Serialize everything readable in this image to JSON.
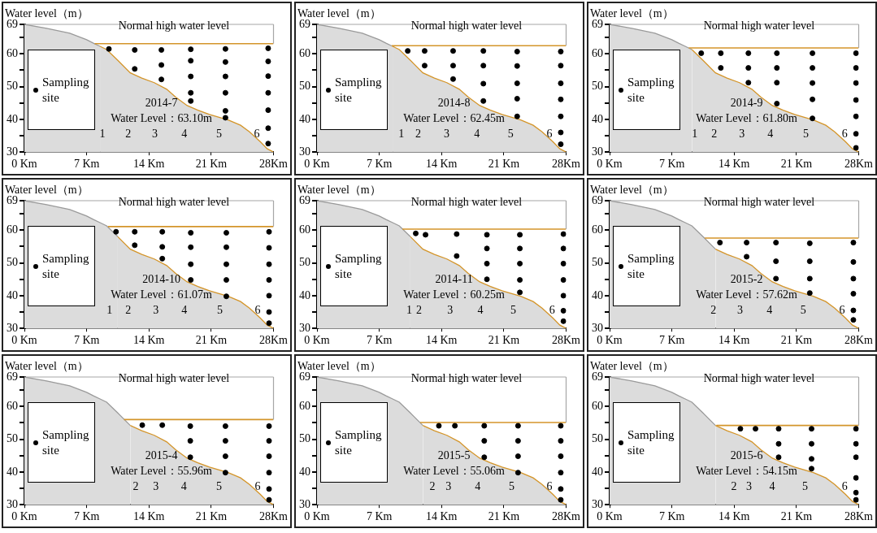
{
  "chart_data": [
    {
      "type": "area",
      "ylabel": "Water level（m）",
      "xlim": [
        0,
        28
      ],
      "ylim": [
        30,
        69
      ],
      "xticks": [
        {
          "value": 0,
          "label": "0 Km"
        },
        {
          "value": 7,
          "label": "7 Km"
        },
        {
          "value": 14,
          "label": "14 Km"
        },
        {
          "value": 21,
          "label": "21 Km"
        },
        {
          "value": 28,
          "label": "28Km"
        }
      ],
      "yticks": [
        30,
        {
          "value": 35,
          "label": null
        },
        40,
        {
          "value": 45,
          "label": null
        },
        50,
        {
          "value": 55,
          "label": null
        },
        60,
        {
          "value": 65,
          "label": null
        },
        69
      ],
      "legend": "left",
      "ref_lines": [
        {
          "axis": "y",
          "value": 69,
          "label": "Normal high water level",
          "color": "#a6a6a6"
        }
      ],
      "annotations": [
        "2014-7",
        "Water Level：63.10m",
        "1",
        "2",
        "3",
        "4",
        "5",
        "6"
      ],
      "series": [
        {
          "color": "#dcdcdc",
          "x": [
            0,
            2.5,
            5.1,
            7,
            7.8,
            8.5,
            9.25,
            10.5,
            11.9,
            13.2,
            14.6,
            16,
            17,
            18.3,
            19.5,
            20.8,
            22.9,
            24.3,
            25.3,
            26.5,
            27.3,
            28
          ],
          "values": [
            69,
            67.8,
            66.3,
            64.3,
            63.2,
            62.3,
            61.3,
            58,
            54.2,
            52.6,
            51.2,
            49.2,
            46.8,
            44.2,
            42.8,
            41.5,
            39.8,
            38.2,
            36.2,
            33.2,
            31,
            30
          ]
        },
        {
          "type": "line",
          "color": "#d4952a",
          "x": [
            7.9,
            28
          ],
          "values": [
            63.1,
            63.1
          ]
        },
        {
          "type": "scatter",
          "name": "Sampling site",
          "marker": "circle",
          "color": "#000000",
          "x": [
            9.5,
            12.4,
            12.4,
            15.4,
            15.4,
            15.4,
            18.7,
            18.7,
            18.7,
            18.7,
            18.7,
            22.6,
            22.6,
            22.6,
            22.6,
            22.6,
            22.6,
            27.4,
            27.4,
            27.4,
            27.4,
            27.4,
            27.4,
            27.4
          ],
          "values": [
            61.5,
            61.2,
            55.4,
            61.2,
            56.6,
            52.2,
            61.4,
            57.9,
            53.1,
            48.1,
            45.6,
            61.5,
            57.5,
            53.1,
            48.1,
            42.6,
            40.5,
            61.7,
            57.7,
            53.2,
            48.1,
            42.8,
            37.3,
            32.6
          ]
        }
      ]
    },
    {
      "type": "area",
      "ylabel": "Water level（m）",
      "xlim": [
        0,
        28
      ],
      "ylim": [
        30,
        69
      ],
      "xticks": [
        {
          "value": 0,
          "label": "0 Km"
        },
        {
          "value": 7,
          "label": "7 Km"
        },
        {
          "value": 14,
          "label": "14 Km"
        },
        {
          "value": 21,
          "label": "21 Km"
        },
        {
          "value": 28,
          "label": "28Km"
        }
      ],
      "yticks": [
        30,
        {
          "value": 35,
          "label": null
        },
        40,
        {
          "value": 45,
          "label": null
        },
        50,
        {
          "value": 55,
          "label": null
        },
        60,
        {
          "value": 65,
          "label": null
        },
        69
      ],
      "legend": "left",
      "ref_lines": [
        {
          "axis": "y",
          "value": 69,
          "label": "Normal high water level",
          "color": "#a6a6a6"
        }
      ],
      "annotations": [
        "2014-8",
        "Water Level：62.45m",
        "1",
        "2",
        "3",
        "4",
        "5",
        "6"
      ],
      "series": [
        {
          "color": "#dcdcdc",
          "x": [
            0,
            2.5,
            5.1,
            7,
            7.8,
            8.5,
            9.25,
            10.5,
            11.9,
            13.2,
            14.6,
            16,
            17,
            18.3,
            19.5,
            20.8,
            22.9,
            24.3,
            25.3,
            26.5,
            27.3,
            28
          ],
          "values": [
            69,
            67.8,
            66.3,
            64.3,
            63.2,
            62.3,
            61.3,
            58,
            54.2,
            52.6,
            51.2,
            49.2,
            46.8,
            44.2,
            42.8,
            41.5,
            39.8,
            38.2,
            36.2,
            33.2,
            31,
            30
          ]
        },
        {
          "type": "line",
          "color": "#d4952a",
          "x": [
            8.4,
            28
          ],
          "values": [
            62.5,
            62.5
          ]
        },
        {
          "type": "scatter",
          "name": "Sampling site",
          "marker": "circle",
          "color": "#000000",
          "x": [
            10.2,
            12.1,
            12.1,
            15.3,
            15.3,
            15.3,
            18.7,
            18.7,
            18.7,
            18.7,
            22.5,
            22.5,
            22.5,
            22.5,
            22.5,
            27.4,
            27.4,
            27.4,
            27.4,
            27.4,
            27.4,
            27.4
          ],
          "values": [
            60.9,
            60.9,
            56.4,
            60.9,
            56.4,
            52.3,
            60.9,
            56.4,
            50.9,
            45.6,
            60.7,
            56.3,
            51,
            46.3,
            40.9,
            60.7,
            56.4,
            51,
            46.1,
            40.9,
            36,
            32.4
          ]
        }
      ]
    },
    {
      "type": "area",
      "ylabel": "Water level（m）",
      "xlim": [
        0,
        28
      ],
      "ylim": [
        30,
        69
      ],
      "xticks": [
        {
          "value": 0,
          "label": "0 Km"
        },
        {
          "value": 7,
          "label": "7 Km"
        },
        {
          "value": 14,
          "label": "14 Km"
        },
        {
          "value": 21,
          "label": "21 Km"
        },
        {
          "value": 28,
          "label": "28Km"
        }
      ],
      "yticks": [
        30,
        {
          "value": 35,
          "label": null
        },
        40,
        {
          "value": 45,
          "label": null
        },
        50,
        {
          "value": 55,
          "label": null
        },
        60,
        {
          "value": 65,
          "label": null
        },
        69
      ],
      "legend": "left",
      "ref_lines": [
        {
          "axis": "y",
          "value": 69,
          "label": "Normal high water level",
          "color": "#a6a6a6"
        }
      ],
      "annotations": [
        "2014-9",
        "Water Level：61.80m",
        "1",
        "2",
        "3",
        "4",
        "5",
        "6"
      ],
      "series": [
        {
          "color": "#dcdcdc",
          "x": [
            0,
            2.5,
            5.1,
            7,
            7.8,
            8.5,
            9.25,
            10.5,
            11.9,
            13.2,
            14.6,
            16,
            17,
            18.3,
            19.5,
            20.8,
            22.9,
            24.3,
            25.3,
            26.5,
            27.3,
            28
          ],
          "values": [
            69,
            67.8,
            66.3,
            64.3,
            63.2,
            62.3,
            61.3,
            58,
            54.2,
            52.6,
            51.2,
            49.2,
            46.8,
            44.2,
            42.8,
            41.5,
            39.8,
            38.2,
            36.2,
            33.2,
            31,
            30
          ]
        },
        {
          "type": "line",
          "color": "#d4952a",
          "x": [
            8.9,
            28
          ],
          "values": [
            61.8,
            61.8
          ]
        },
        {
          "type": "scatter",
          "name": "Sampling site",
          "marker": "circle",
          "color": "#000000",
          "x": [
            10.3,
            12.5,
            12.5,
            15.6,
            15.6,
            15.6,
            18.8,
            18.8,
            18.8,
            18.8,
            22.8,
            22.8,
            22.8,
            22.8,
            22.8,
            27.7,
            27.7,
            27.7,
            27.7,
            27.7,
            27.7,
            27.7
          ],
          "values": [
            60.2,
            60.2,
            55.7,
            60.2,
            55.7,
            51.2,
            60.2,
            55.7,
            51.2,
            44.8,
            60.2,
            55.7,
            51.1,
            46.1,
            40.3,
            60.2,
            55.7,
            51.1,
            45.9,
            40.9,
            35.6,
            31.3
          ]
        }
      ]
    },
    {
      "type": "area",
      "ylabel": "Water level（m）",
      "xlim": [
        0,
        28
      ],
      "ylim": [
        30,
        69
      ],
      "xticks": [
        {
          "value": 0,
          "label": "0 Km"
        },
        {
          "value": 7,
          "label": "7 Km"
        },
        {
          "value": 14,
          "label": "14 Km"
        },
        {
          "value": 21,
          "label": "21 Km"
        },
        {
          "value": 28,
          "label": "28Km"
        }
      ],
      "yticks": [
        30,
        {
          "value": 35,
          "label": null
        },
        40,
        {
          "value": 45,
          "label": null
        },
        50,
        {
          "value": 55,
          "label": null
        },
        60,
        {
          "value": 65,
          "label": null
        },
        69
      ],
      "legend": "left",
      "ref_lines": [
        {
          "axis": "y",
          "value": 69,
          "label": "Normal high water level",
          "color": "#a6a6a6"
        }
      ],
      "annotations": [
        "2014-10",
        "Water Level：61.07m",
        "1",
        "2",
        "3",
        "4",
        "5",
        "6"
      ],
      "series": [
        {
          "color": "#dcdcdc",
          "x": [
            0,
            2.5,
            5.1,
            7,
            7.8,
            8.5,
            9.25,
            10.5,
            11.9,
            13.2,
            14.6,
            16,
            17,
            18.3,
            19.5,
            20.8,
            22.9,
            24.3,
            25.3,
            26.5,
            27.3,
            28
          ],
          "values": [
            69,
            67.8,
            66.3,
            64.3,
            63.2,
            62.3,
            61.3,
            58,
            54.2,
            52.6,
            51.2,
            49.2,
            46.8,
            44.2,
            42.8,
            41.5,
            39.8,
            38.2,
            36.2,
            33.2,
            31,
            30
          ]
        },
        {
          "type": "line",
          "color": "#d4952a",
          "x": [
            9.4,
            28
          ],
          "values": [
            61.1,
            61.1
          ]
        },
        {
          "type": "scatter",
          "name": "Sampling site",
          "marker": "circle",
          "color": "#000000",
          "x": [
            10.3,
            12.4,
            12.4,
            15.5,
            15.5,
            15.5,
            18.7,
            18.7,
            18.7,
            18.7,
            22.7,
            22.7,
            22.7,
            22.7,
            22.7,
            27.5,
            27.5,
            27.5,
            27.5,
            27.5,
            27.5,
            27.5
          ],
          "values": [
            59.5,
            59.5,
            55.4,
            59.5,
            54.9,
            51.3,
            59.2,
            54.8,
            49.6,
            44.8,
            59.2,
            54.8,
            49.6,
            44.8,
            39.8,
            59.5,
            54.6,
            49.6,
            44.8,
            40,
            35,
            31.6
          ]
        }
      ]
    },
    {
      "type": "area",
      "ylabel": "Water level（m）",
      "xlim": [
        0,
        28
      ],
      "ylim": [
        30,
        69
      ],
      "xticks": [
        {
          "value": 0,
          "label": "0 Km"
        },
        {
          "value": 7,
          "label": "7 Km"
        },
        {
          "value": 14,
          "label": "14 Km"
        },
        {
          "value": 21,
          "label": "21 Km"
        },
        {
          "value": 28,
          "label": "28Km"
        }
      ],
      "yticks": [
        30,
        {
          "value": 35,
          "label": null
        },
        40,
        {
          "value": 45,
          "label": null
        },
        50,
        {
          "value": 55,
          "label": null
        },
        60,
        {
          "value": 65,
          "label": null
        },
        69
      ],
      "legend": "left",
      "ref_lines": [
        {
          "axis": "y",
          "value": 69,
          "label": "Normal high water level",
          "color": "#a6a6a6"
        }
      ],
      "annotations": [
        "2014-11",
        "Water Level：60.25m",
        "1",
        "2",
        "3",
        "4",
        "5",
        "6"
      ],
      "series": [
        {
          "color": "#dcdcdc",
          "x": [
            0,
            2.5,
            5.1,
            7,
            7.8,
            8.5,
            9.25,
            10.5,
            11.9,
            13.2,
            14.6,
            16,
            17,
            18.3,
            19.5,
            20.8,
            22.9,
            24.3,
            25.3,
            26.5,
            27.3,
            28
          ],
          "values": [
            69,
            67.8,
            66.3,
            64.3,
            63.2,
            62.3,
            61.3,
            58,
            54.2,
            52.6,
            51.2,
            49.2,
            46.8,
            44.2,
            42.8,
            41.5,
            39.8,
            38.2,
            36.2,
            33.2,
            31,
            30
          ]
        },
        {
          "type": "line",
          "color": "#d4952a",
          "x": [
            9.6,
            28
          ],
          "values": [
            60.3,
            60.3
          ]
        },
        {
          "type": "scatter",
          "name": "Sampling site",
          "marker": "circle",
          "color": "#000000",
          "x": [
            11.1,
            12.2,
            15.7,
            15.7,
            19.1,
            19.1,
            19.1,
            19.1,
            22.8,
            22.8,
            22.8,
            22.8,
            22.8,
            27.7,
            27.7,
            27.7,
            27.7,
            27.7,
            27.7,
            27.7
          ],
          "values": [
            59,
            58.6,
            58.8,
            52.1,
            58.6,
            54.4,
            49.8,
            45,
            58.6,
            54.4,
            49.8,
            44.8,
            41,
            58.8,
            54.4,
            49.8,
            44.8,
            40,
            35.4,
            32.2
          ]
        }
      ]
    },
    {
      "type": "area",
      "ylabel": "Water level（m）",
      "xlim": [
        0,
        28
      ],
      "ylim": [
        30,
        69
      ],
      "xticks": [
        {
          "value": 0,
          "label": "0 Km"
        },
        {
          "value": 7,
          "label": "7 Km"
        },
        {
          "value": 14,
          "label": "14 Km"
        },
        {
          "value": 21,
          "label": "21 Km"
        },
        {
          "value": 28,
          "label": "28Km"
        }
      ],
      "yticks": [
        30,
        {
          "value": 35,
          "label": null
        },
        40,
        {
          "value": 45,
          "label": null
        },
        50,
        {
          "value": 55,
          "label": null
        },
        60,
        {
          "value": 65,
          "label": null
        },
        69
      ],
      "legend": "left",
      "ref_lines": [
        {
          "axis": "y",
          "value": 69,
          "label": "Normal high water level",
          "color": "#a6a6a6"
        }
      ],
      "annotations": [
        "2015-2",
        "Water Level：57.62m",
        "2",
        "3",
        "4",
        "5",
        "6"
      ],
      "series": [
        {
          "color": "#dcdcdc",
          "x": [
            0,
            2.5,
            5.1,
            7,
            7.8,
            8.5,
            9.25,
            10.5,
            11.9,
            13.2,
            14.6,
            16,
            17,
            18.3,
            19.5,
            20.8,
            22.9,
            24.3,
            25.3,
            26.5,
            27.3,
            28
          ],
          "values": [
            69,
            67.8,
            66.3,
            64.3,
            63.2,
            62.3,
            61.3,
            58,
            54.2,
            52.6,
            51.2,
            49.2,
            46.8,
            44.2,
            42.8,
            41.5,
            39.8,
            38.2,
            36.2,
            33.2,
            31,
            30
          ]
        },
        {
          "type": "line",
          "color": "#d4952a",
          "x": [
            10.7,
            28
          ],
          "values": [
            57.6,
            57.6
          ]
        },
        {
          "type": "scatter",
          "name": "Sampling site",
          "marker": "circle",
          "color": "#000000",
          "x": [
            12.4,
            15.4,
            15.4,
            18.7,
            18.7,
            18.7,
            22.5,
            22.5,
            22.5,
            22.5,
            27.4,
            27.4,
            27.4,
            27.4,
            27.4,
            27.4
          ],
          "values": [
            56.2,
            56.2,
            51.9,
            56.2,
            50.5,
            45.2,
            56,
            50.5,
            45.2,
            40.8,
            56.2,
            50.3,
            45.2,
            40.6,
            35.5,
            32.6
          ]
        }
      ]
    },
    {
      "type": "area",
      "ylabel": "Water level（m）",
      "xlim": [
        0,
        28
      ],
      "ylim": [
        30,
        69
      ],
      "xticks": [
        {
          "value": 0,
          "label": "0 Km"
        },
        {
          "value": 7,
          "label": "7 Km"
        },
        {
          "value": 14,
          "label": "14 Km"
        },
        {
          "value": 21,
          "label": "21 Km"
        },
        {
          "value": 28,
          "label": "28Km"
        }
      ],
      "yticks": [
        30,
        {
          "value": 35,
          "label": null
        },
        40,
        {
          "value": 45,
          "label": null
        },
        50,
        {
          "value": 55,
          "label": null
        },
        60,
        {
          "value": 65,
          "label": null
        },
        69
      ],
      "legend": "left",
      "ref_lines": [
        {
          "axis": "y",
          "value": 69,
          "label": "Normal high water level",
          "color": "#a6a6a6"
        }
      ],
      "annotations": [
        "2015-4",
        "Water Level：55.96m",
        "2",
        "3",
        "4",
        "5",
        "6"
      ],
      "series": [
        {
          "color": "#dcdcdc",
          "x": [
            0,
            2.5,
            5.1,
            7,
            7.8,
            8.5,
            9.25,
            10.5,
            11.9,
            13.2,
            14.6,
            16,
            17,
            18.3,
            19.5,
            20.8,
            22.9,
            24.3,
            25.3,
            26.5,
            27.3,
            28
          ],
          "values": [
            69,
            67.8,
            66.3,
            64.3,
            63.2,
            62.3,
            61.3,
            58,
            54.2,
            52.6,
            51.2,
            49.2,
            46.8,
            44.2,
            42.8,
            41.5,
            39.8,
            38.2,
            36.2,
            33.2,
            31,
            30
          ]
        },
        {
          "type": "line",
          "color": "#d4952a",
          "x": [
            11.2,
            28
          ],
          "values": [
            56.0,
            56.0
          ]
        },
        {
          "type": "scatter",
          "name": "Sampling site",
          "marker": "circle",
          "color": "#000000",
          "x": [
            13.25,
            15.5,
            18.65,
            18.65,
            18.65,
            22.6,
            22.6,
            22.6,
            22.6,
            27.5,
            27.5,
            27.5,
            27.5,
            27.5,
            27.5
          ],
          "values": [
            54.3,
            54.3,
            54,
            49.5,
            44.5,
            54,
            49.5,
            44.8,
            39.8,
            54,
            49.5,
            44.8,
            39.8,
            34.8,
            31.5
          ]
        }
      ]
    },
    {
      "type": "area",
      "ylabel": "Water level（m）",
      "xlim": [
        0,
        28
      ],
      "ylim": [
        30,
        69
      ],
      "xticks": [
        {
          "value": 0,
          "label": "0 Km"
        },
        {
          "value": 7,
          "label": "7 Km"
        },
        {
          "value": 14,
          "label": "14 Km"
        },
        {
          "value": 21,
          "label": "21 Km"
        },
        {
          "value": 28,
          "label": "28Km"
        }
      ],
      "yticks": [
        30,
        {
          "value": 35,
          "label": null
        },
        40,
        {
          "value": 45,
          "label": null
        },
        50,
        {
          "value": 55,
          "label": null
        },
        60,
        {
          "value": 65,
          "label": null
        },
        69
      ],
      "legend": "left",
      "ref_lines": [
        {
          "axis": "y",
          "value": 69,
          "label": "Normal high water level",
          "color": "#a6a6a6"
        }
      ],
      "annotations": [
        "2015-5",
        "Water Level：55.06m",
        "2",
        "3",
        "4",
        "5",
        "6"
      ],
      "series": [
        {
          "color": "#dcdcdc",
          "x": [
            0,
            2.5,
            5.1,
            7,
            7.8,
            8.5,
            9.25,
            10.5,
            11.9,
            13.2,
            14.6,
            16,
            17,
            18.3,
            19.5,
            20.8,
            22.9,
            24.3,
            25.3,
            26.5,
            27.3,
            28
          ],
          "values": [
            69,
            67.8,
            66.3,
            64.3,
            63.2,
            62.3,
            61.3,
            58,
            54.2,
            52.6,
            51.2,
            49.2,
            46.8,
            44.2,
            42.8,
            41.5,
            39.8,
            38.2,
            36.2,
            33.2,
            31,
            30
          ]
        },
        {
          "type": "line",
          "color": "#d4952a",
          "x": [
            11.6,
            28
          ],
          "values": [
            55.1,
            55.1
          ]
        },
        {
          "type": "scatter",
          "name": "Sampling site",
          "marker": "circle",
          "color": "#000000",
          "x": [
            13.7,
            15.5,
            18.8,
            18.8,
            18.8,
            22.6,
            22.6,
            22.6,
            22.6,
            27.4,
            27.4,
            27.4,
            27.4,
            27.4,
            27.4
          ],
          "values": [
            54.1,
            54.1,
            54.1,
            49.5,
            44.5,
            54.1,
            49.5,
            44.8,
            39.8,
            54.1,
            49.5,
            44.8,
            39.8,
            34.8,
            31.5
          ]
        }
      ]
    },
    {
      "type": "area",
      "ylabel": "Water level（m）",
      "xlim": [
        0,
        28
      ],
      "ylim": [
        30,
        69
      ],
      "xticks": [
        {
          "value": 0,
          "label": "0 Km"
        },
        {
          "value": 7,
          "label": "7 Km"
        },
        {
          "value": 14,
          "label": "14 Km"
        },
        {
          "value": 21,
          "label": "21 Km"
        },
        {
          "value": 28,
          "label": "28Km"
        }
      ],
      "yticks": [
        30,
        {
          "value": 35,
          "label": null
        },
        40,
        {
          "value": 45,
          "label": null
        },
        50,
        {
          "value": 55,
          "label": null
        },
        60,
        {
          "value": 65,
          "label": null
        },
        69
      ],
      "legend": "left",
      "ref_lines": [
        {
          "axis": "y",
          "value": 69,
          "label": "Normal high water level",
          "color": "#a6a6a6"
        }
      ],
      "annotations": [
        "2015-6",
        "Water Level：54.15m",
        "2",
        "3",
        "4",
        "5",
        "6"
      ],
      "series": [
        {
          "color": "#dcdcdc",
          "x": [
            0,
            2.5,
            5.1,
            7,
            7.8,
            8.5,
            9.25,
            10.5,
            11.9,
            13.2,
            14.6,
            16,
            17,
            18.3,
            19.5,
            20.8,
            22.9,
            24.3,
            25.3,
            26.5,
            27.3,
            28
          ],
          "values": [
            69,
            67.8,
            66.3,
            64.3,
            63.2,
            62.3,
            61.3,
            58,
            54.2,
            52.6,
            51.2,
            49.2,
            46.8,
            44.2,
            42.8,
            41.5,
            39.8,
            38.2,
            36.2,
            33.2,
            31,
            30
          ]
        },
        {
          "type": "line",
          "color": "#d4952a",
          "x": [
            12.0,
            28
          ],
          "values": [
            54.2,
            54.2
          ]
        },
        {
          "type": "scatter",
          "name": "Sampling site",
          "marker": "circle",
          "color": "#000000",
          "x": [
            14.7,
            16.4,
            19,
            19,
            19,
            22.7,
            22.7,
            22.7,
            22.7,
            27.7,
            27.7,
            27.7,
            27.7,
            27.7,
            27.7
          ],
          "values": [
            53.2,
            53.2,
            53.2,
            48.6,
            44.5,
            53.2,
            48.6,
            44,
            41,
            53.2,
            48.6,
            44.5,
            38.2,
            33.7,
            31.5
          ]
        }
      ]
    }
  ]
}
